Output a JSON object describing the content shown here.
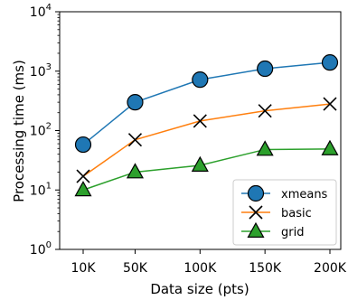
{
  "chart_data": {
    "type": "line",
    "xlabel": "Data size (pts)",
    "ylabel": "Processing time (ms)",
    "categories": [
      "10K",
      "50K",
      "100K",
      "150K",
      "200K"
    ],
    "x": [
      10000,
      50000,
      100000,
      150000,
      200000
    ],
    "yscale": "log",
    "ylim": [
      1,
      10000
    ],
    "y_ticks": [
      {
        "value": 1,
        "base": "10",
        "exp": "0"
      },
      {
        "value": 10,
        "base": "10",
        "exp": "1"
      },
      {
        "value": 100,
        "base": "10",
        "exp": "2"
      },
      {
        "value": 1000,
        "base": "10",
        "exp": "3"
      },
      {
        "value": 10000,
        "base": "10",
        "exp": "4"
      }
    ],
    "grid": false,
    "legend_position": "bottom-right",
    "series": [
      {
        "name": "xmeans",
        "values": [
          58,
          300,
          720,
          1100,
          1400
        ],
        "color": "#1f77b4",
        "marker": "circle"
      },
      {
        "name": "basic",
        "values": [
          17,
          70,
          145,
          215,
          280
        ],
        "color": "#ff7f0e",
        "marker": "x"
      },
      {
        "name": "grid",
        "values": [
          10,
          20,
          26,
          48,
          49
        ],
        "color": "#2ca02c",
        "marker": "triangle"
      }
    ]
  }
}
